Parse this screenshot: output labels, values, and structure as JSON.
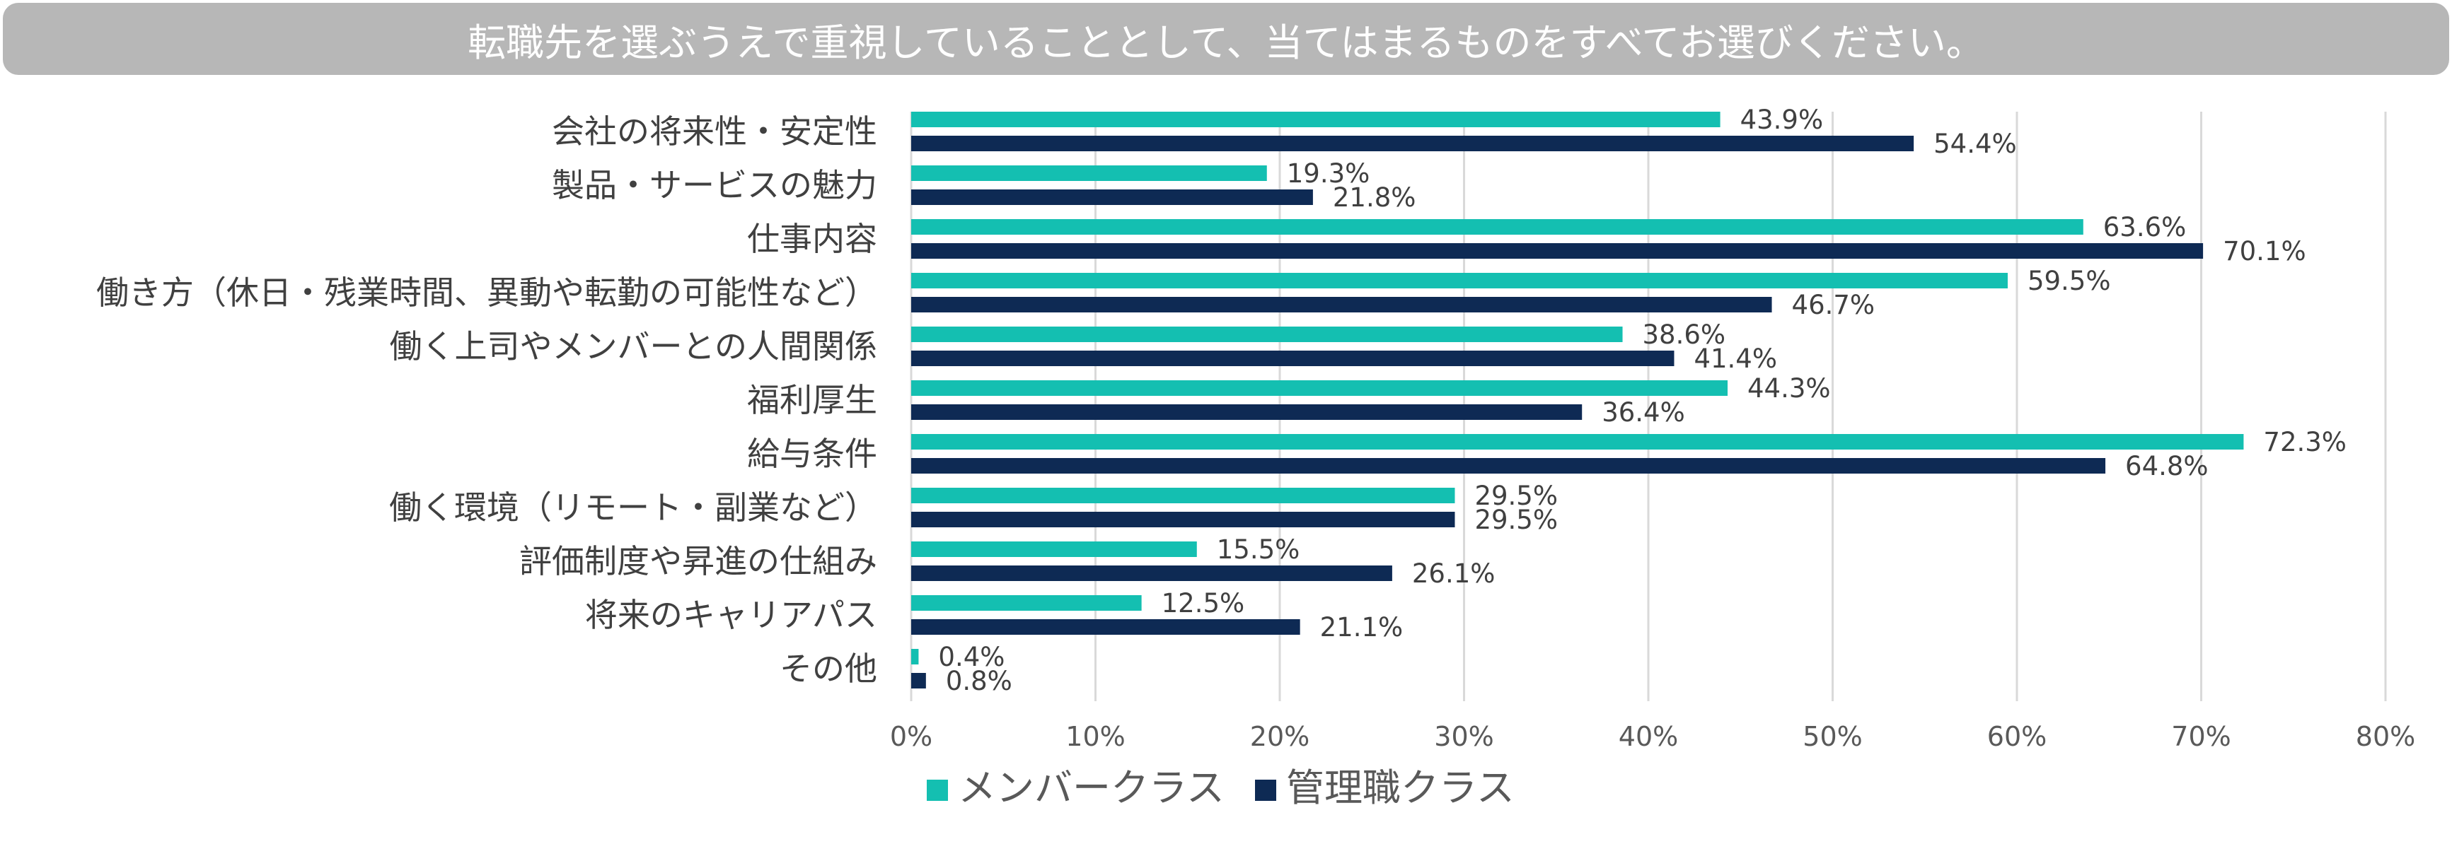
{
  "title": "転職先を選ぶうえで重視していることとして、当てはまるものをすべてお選びください。",
  "chart_data": {
    "type": "bar",
    "orientation": "horizontal",
    "categories": [
      "会社の将来性・安定性",
      "製品・サービスの魅力",
      "仕事内容",
      "働き方（休日・残業時間、異動や転勤の可能性など）",
      "働く上司やメンバーとの人間関係",
      "福利厚生",
      "給与条件",
      "働く環境（リモート・副業など）",
      "評価制度や昇進の仕組み",
      "将来のキャリアパス",
      "その他"
    ],
    "series": [
      {
        "name": "メンバークラス",
        "color": "#14bfb1",
        "values": [
          43.9,
          19.3,
          63.6,
          59.5,
          38.6,
          44.3,
          72.3,
          29.5,
          15.5,
          12.5,
          0.4
        ],
        "labels": [
          "43.9%",
          "19.3%",
          "63.6%",
          "59.5%",
          "38.6%",
          "44.3%",
          "72.3%",
          "29.5%",
          "15.5%",
          "12.5%",
          "0.4%"
        ]
      },
      {
        "name": "管理職クラス",
        "color": "#0e2a54",
        "values": [
          54.4,
          21.8,
          70.1,
          46.7,
          41.4,
          36.4,
          64.8,
          29.5,
          26.1,
          21.1,
          0.8
        ],
        "labels": [
          "54.4%",
          "21.8%",
          "70.1%",
          "46.7%",
          "41.4%",
          "36.4%",
          "64.8%",
          "29.5%",
          "26.1%",
          "21.1%",
          "0.8%"
        ]
      }
    ],
    "xlim": [
      0,
      80
    ],
    "xticks": [
      "0%",
      "10%",
      "20%",
      "30%",
      "40%",
      "50%",
      "60%",
      "70%",
      "80%"
    ],
    "grid": true,
    "legend_position": "bottom"
  }
}
